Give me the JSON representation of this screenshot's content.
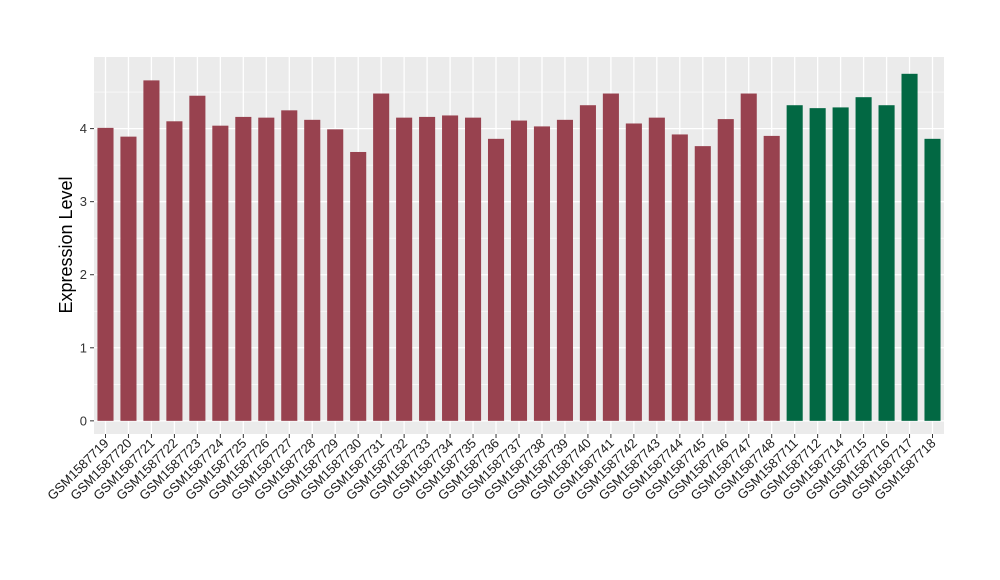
{
  "chart_data": {
    "type": "bar",
    "ylabel": "Expression Level",
    "xlabel": "",
    "ylim": [
      -0.18,
      4.98
    ],
    "yticks": [
      0,
      1,
      2,
      3,
      4
    ],
    "grid": true,
    "colors": {
      "group_a": "#98424F",
      "group_b": "#026843",
      "panel": "#EBEBEB",
      "grid": "#FFFFFF"
    },
    "categories": [
      "GSM1587719",
      "GSM1587720",
      "GSM1587721",
      "GSM1587722",
      "GSM1587723",
      "GSM1587724",
      "GSM1587725",
      "GSM1587726",
      "GSM1587727",
      "GSM1587728",
      "GSM1587729",
      "GSM1587730",
      "GSM1587731",
      "GSM1587732",
      "GSM1587733",
      "GSM1587734",
      "GSM1587735",
      "GSM1587736",
      "GSM1587737",
      "GSM1587738",
      "GSM1587739",
      "GSM1587740",
      "GSM1587741",
      "GSM1587742",
      "GSM1587743",
      "GSM1587744",
      "GSM1587745",
      "GSM1587746",
      "GSM1587747",
      "GSM1587748",
      "GSM1587711",
      "GSM1587712",
      "GSM1587714",
      "GSM1587715",
      "GSM1587716",
      "GSM1587717",
      "GSM1587718"
    ],
    "values": [
      4.01,
      3.89,
      4.66,
      4.1,
      4.45,
      4.04,
      4.16,
      4.15,
      4.25,
      4.12,
      3.99,
      3.68,
      4.48,
      4.15,
      4.16,
      4.18,
      4.15,
      3.86,
      4.11,
      4.03,
      4.12,
      4.32,
      4.48,
      4.07,
      4.15,
      3.92,
      3.76,
      4.13,
      4.48,
      3.9,
      4.32,
      4.28,
      4.29,
      4.43,
      4.32,
      4.75,
      3.86
    ],
    "groups": [
      "a",
      "a",
      "a",
      "a",
      "a",
      "a",
      "a",
      "a",
      "a",
      "a",
      "a",
      "a",
      "a",
      "a",
      "a",
      "a",
      "a",
      "a",
      "a",
      "a",
      "a",
      "a",
      "a",
      "a",
      "a",
      "a",
      "a",
      "a",
      "a",
      "a",
      "b",
      "b",
      "b",
      "b",
      "b",
      "b",
      "b"
    ]
  }
}
